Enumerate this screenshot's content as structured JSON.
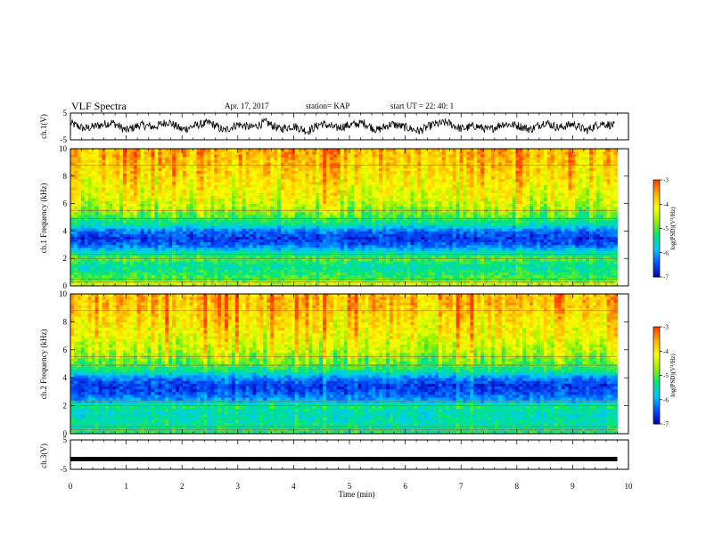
{
  "header": {
    "title": "VLF Spectra",
    "date": "Apr. 17, 2017",
    "station": "station= KAP",
    "start": "start UT =  22: 40: 1"
  },
  "chart_data": [
    {
      "type": "line",
      "panel": "ch1-waveform",
      "ylabel": "ch.1(V)",
      "ylim": [
        -5,
        5
      ],
      "ytick_labels": [
        "5",
        "-5"
      ],
      "xlim": [
        0,
        10
      ],
      "x": [
        0,
        0.25,
        0.5,
        0.75,
        1,
        1.25,
        1.5,
        1.75,
        2,
        2.25,
        2.5,
        2.75,
        3,
        3.25,
        3.5,
        3.75,
        4,
        4.25,
        4.5,
        4.75,
        5,
        5.25,
        5.5,
        5.75,
        6,
        6.25,
        6.5,
        6.75,
        7,
        7.25,
        7.5,
        7.75,
        8,
        8.25,
        8.5,
        8.75,
        9,
        9.25,
        9.5,
        9.75
      ],
      "y": [
        1.2,
        -0.8,
        0.3,
        1.5,
        -1.5,
        0.6,
        -0.2,
        1.8,
        -1.2,
        0.4,
        1.4,
        -1.6,
        0.8,
        -0.4,
        1.6,
        -1.0,
        0.2,
        -1.8,
        1.1,
        -0.6,
        0.5,
        1.3,
        -1.4,
        0.9,
        -0.3,
        -1.7,
        0.7,
        1.5,
        -0.9,
        0.2,
        -1.3,
        1.0,
        0.4,
        -1.1,
        1.6,
        -0.5,
        0.9,
        -1.5,
        1.2,
        0.3
      ]
    },
    {
      "type": "heatmap",
      "panel": "ch1-spectrogram",
      "ylabel": "ch.1 Frequency (kHz)",
      "ylim": [
        0,
        10
      ],
      "ytick_labels": [
        "0",
        "2",
        "4",
        "6",
        "8",
        "10"
      ],
      "xlim": [
        0,
        10
      ],
      "colorbar": {
        "label": "log(PSD)(V²/Hz)",
        "range": [
          -7,
          -3
        ],
        "tick_labels": [
          "-3",
          "-4",
          "-5",
          "-6",
          "-7"
        ]
      },
      "freq_khz": [
        0,
        0.5,
        1,
        1.5,
        2,
        2.5,
        3,
        3.5,
        4,
        4.5,
        5,
        5.5,
        6,
        6.5,
        7,
        7.5,
        8,
        8.5,
        9,
        9.5
      ],
      "time_min": [
        0,
        0.5,
        1,
        1.5,
        2,
        2.5,
        3,
        3.5,
        4,
        4.5,
        5,
        5.5,
        6,
        6.5,
        7,
        7.5,
        8,
        8.5,
        9,
        9.5
      ],
      "log_psd_profile": [
        -4.3,
        -5.0,
        -5.3,
        -5.5,
        -5.0,
        -5.6,
        -6.4,
        -6.6,
        -6.3,
        -5.5,
        -5.1,
        -4.8,
        -4.5,
        -4.3,
        -4.2,
        -4.1,
        -4.0,
        -3.9,
        -3.8,
        -3.7
      ]
    },
    {
      "type": "heatmap",
      "panel": "ch2-spectrogram",
      "ylabel": "ch.2 Frequency (kHz)",
      "ylim": [
        0,
        10
      ],
      "ytick_labels": [
        "0",
        "2",
        "4",
        "6",
        "8",
        "10"
      ],
      "xlim": [
        0,
        10
      ],
      "colorbar": {
        "label": "log(PSD)(V²/Hz)",
        "range": [
          -7,
          -3
        ],
        "tick_labels": [
          "-3",
          "-4",
          "-5",
          "-6",
          "-7"
        ]
      },
      "freq_khz": [
        0,
        0.5,
        1,
        1.5,
        2,
        2.5,
        3,
        3.5,
        4,
        4.5,
        5,
        5.5,
        6,
        6.5,
        7,
        7.5,
        8,
        8.5,
        9,
        9.5
      ],
      "time_min": [
        0,
        0.5,
        1,
        1.5,
        2,
        2.5,
        3,
        3.5,
        4,
        4.5,
        5,
        5.5,
        6,
        6.5,
        7,
        7.5,
        8,
        8.5,
        9,
        9.5
      ],
      "log_psd_profile": [
        -5.2,
        -5.4,
        -5.5,
        -5.6,
        -5.3,
        -6.1,
        -6.5,
        -6.6,
        -6.2,
        -5.4,
        -5.0,
        -4.8,
        -4.5,
        -4.4,
        -4.2,
        -4.1,
        -4.0,
        -3.9,
        -3.8,
        -3.7
      ]
    },
    {
      "type": "line",
      "panel": "ch3-waveform",
      "ylabel": "ch.3(V)",
      "ylim": [
        -5,
        5
      ],
      "ytick_labels": [
        "5",
        "-5"
      ],
      "xlim": [
        0,
        10
      ],
      "x": [
        0,
        9.8
      ],
      "y": [
        -1.5,
        -1.5
      ]
    }
  ],
  "x_axis": {
    "label": "Time (min)",
    "tick_labels": [
      "0",
      "1",
      "2",
      "3",
      "4",
      "5",
      "6",
      "7",
      "8",
      "9",
      "10"
    ]
  },
  "colors": {
    "trace": "#000000",
    "colormap": [
      "#0000b4",
      "#0050ff",
      "#00c8ff",
      "#00e678",
      "#96f000",
      "#ffff00",
      "#ffb400",
      "#ff3c00",
      "#ffffff"
    ]
  }
}
